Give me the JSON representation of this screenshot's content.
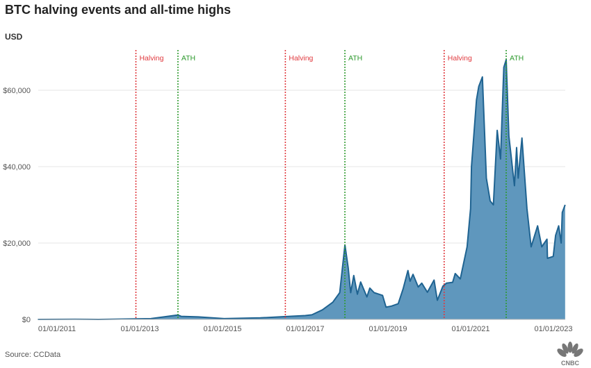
{
  "title": "BTC halving events and all-time highs",
  "unit_label": "USD",
  "source": "Source: CCData",
  "logo_text": "CNBC",
  "colors": {
    "area_fill": "#5f97bd",
    "line": "#1f6391",
    "halving": "#e0393e",
    "ath": "#2e9a2e",
    "grid": "#e6e6e6"
  },
  "chart_data": {
    "type": "area",
    "title": "BTC halving events and all-time highs",
    "ylabel": "USD",
    "ylim": [
      0,
      70000
    ],
    "xlim": [
      "2010-07-17",
      "2023-04-14"
    ],
    "grid": "horizontal",
    "y_ticks": [
      {
        "value": 0,
        "label": "$0"
      },
      {
        "value": 20000,
        "label": "$20,000"
      },
      {
        "value": 40000,
        "label": "$40,000"
      },
      {
        "value": 60000,
        "label": "$60,000"
      }
    ],
    "x_ticks": [
      {
        "value": "2011-01-01",
        "label": "01/01/2011"
      },
      {
        "value": "2013-01-01",
        "label": "01/01/2013"
      },
      {
        "value": "2015-01-01",
        "label": "01/01/2015"
      },
      {
        "value": "2017-01-01",
        "label": "01/01/2017"
      },
      {
        "value": "2019-01-01",
        "label": "01/01/2019"
      },
      {
        "value": "2021-01-01",
        "label": "01/01/2021"
      },
      {
        "value": "2023-01-01",
        "label": "01/01/2023"
      }
    ],
    "events": [
      {
        "date": "2012-11-28",
        "label": "Halving",
        "kind": "halving"
      },
      {
        "date": "2013-12-04",
        "label": "ATH",
        "kind": "ath"
      },
      {
        "date": "2016-07-09",
        "label": "Halving",
        "kind": "halving"
      },
      {
        "date": "2017-12-17",
        "label": "ATH",
        "kind": "ath"
      },
      {
        "date": "2020-05-11",
        "label": "Halving",
        "kind": "halving"
      },
      {
        "date": "2021-11-10",
        "label": "ATH",
        "kind": "ath"
      }
    ],
    "series": [
      {
        "points": [
          [
            "2010-07-17",
            0.05
          ],
          [
            "2011-06-08",
            30
          ],
          [
            "2012-01-01",
            5
          ],
          [
            "2013-04-10",
            200
          ],
          [
            "2013-12-04",
            1150
          ],
          [
            "2014-01-01",
            800
          ],
          [
            "2014-06-01",
            650
          ],
          [
            "2015-01-15",
            200
          ],
          [
            "2015-12-01",
            400
          ],
          [
            "2016-06-15",
            700
          ],
          [
            "2017-01-01",
            1000
          ],
          [
            "2017-03-01",
            1200
          ],
          [
            "2017-06-01",
            2500
          ],
          [
            "2017-09-01",
            4500
          ],
          [
            "2017-11-01",
            7000
          ],
          [
            "2017-12-17",
            19500
          ],
          [
            "2018-01-15",
            13500
          ],
          [
            "2018-02-06",
            7000
          ],
          [
            "2018-03-05",
            11500
          ],
          [
            "2018-04-06",
            6600
          ],
          [
            "2018-05-05",
            9800
          ],
          [
            "2018-06-29",
            5900
          ],
          [
            "2018-07-25",
            8200
          ],
          [
            "2018-09-01",
            7000
          ],
          [
            "2018-11-14",
            6300
          ],
          [
            "2018-12-15",
            3200
          ],
          [
            "2019-02-01",
            3500
          ],
          [
            "2019-04-01",
            4100
          ],
          [
            "2019-05-15",
            8000
          ],
          [
            "2019-06-26",
            12800
          ],
          [
            "2019-07-15",
            10000
          ],
          [
            "2019-08-10",
            11800
          ],
          [
            "2019-09-25",
            8500
          ],
          [
            "2019-10-26",
            9500
          ],
          [
            "2019-12-15",
            7100
          ],
          [
            "2020-02-12",
            10300
          ],
          [
            "2020-03-12",
            5000
          ],
          [
            "2020-04-30",
            8700
          ],
          [
            "2020-06-01",
            9500
          ],
          [
            "2020-07-25",
            9700
          ],
          [
            "2020-08-17",
            12000
          ],
          [
            "2020-10-01",
            10600
          ],
          [
            "2020-11-30",
            19000
          ],
          [
            "2020-12-31",
            29000
          ],
          [
            "2021-01-08",
            40000
          ],
          [
            "2021-02-21",
            57500
          ],
          [
            "2021-03-13",
            61000
          ],
          [
            "2021-04-14",
            63500
          ],
          [
            "2021-05-19",
            37000
          ],
          [
            "2021-06-22",
            31000
          ],
          [
            "2021-07-20",
            30000
          ],
          [
            "2021-08-23",
            49500
          ],
          [
            "2021-09-21",
            42000
          ],
          [
            "2021-10-20",
            66000
          ],
          [
            "2021-11-10",
            68000
          ],
          [
            "2021-12-04",
            48000
          ],
          [
            "2022-01-22",
            35000
          ],
          [
            "2022-02-10",
            45000
          ],
          [
            "2022-02-24",
            37000
          ],
          [
            "2022-03-29",
            47500
          ],
          [
            "2022-05-12",
            29000
          ],
          [
            "2022-06-18",
            19000
          ],
          [
            "2022-08-14",
            24500
          ],
          [
            "2022-09-20",
            19000
          ],
          [
            "2022-11-05",
            21000
          ],
          [
            "2022-11-09",
            16000
          ],
          [
            "2022-12-30",
            16500
          ],
          [
            "2023-01-20",
            22000
          ],
          [
            "2023-02-16",
            24500
          ],
          [
            "2023-03-10",
            20000
          ],
          [
            "2023-03-20",
            28000
          ],
          [
            "2023-04-14",
            30000
          ]
        ]
      }
    ]
  }
}
